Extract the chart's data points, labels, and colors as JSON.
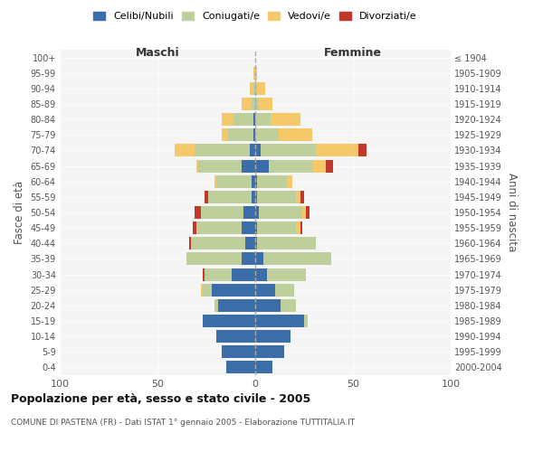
{
  "age_groups": [
    "0-4",
    "5-9",
    "10-14",
    "15-19",
    "20-24",
    "25-29",
    "30-34",
    "35-39",
    "40-44",
    "45-49",
    "50-54",
    "55-59",
    "60-64",
    "65-69",
    "70-74",
    "75-79",
    "80-84",
    "85-89",
    "90-94",
    "95-99",
    "100+"
  ],
  "birth_years": [
    "2000-2004",
    "1995-1999",
    "1990-1994",
    "1985-1989",
    "1980-1984",
    "1975-1979",
    "1970-1974",
    "1965-1969",
    "1960-1964",
    "1955-1959",
    "1950-1954",
    "1945-1949",
    "1940-1944",
    "1935-1939",
    "1930-1934",
    "1925-1929",
    "1920-1924",
    "1915-1919",
    "1910-1914",
    "1905-1909",
    "≤ 1904"
  ],
  "maschi": {
    "celibi": [
      15,
      17,
      20,
      27,
      19,
      22,
      12,
      7,
      5,
      7,
      6,
      2,
      2,
      7,
      3,
      1,
      1,
      0,
      0,
      0,
      0
    ],
    "coniugati": [
      0,
      0,
      0,
      0,
      2,
      5,
      14,
      28,
      28,
      23,
      22,
      22,
      18,
      22,
      28,
      13,
      10,
      2,
      1,
      0,
      0
    ],
    "vedovi": [
      0,
      0,
      0,
      0,
      0,
      1,
      0,
      0,
      0,
      0,
      0,
      0,
      1,
      1,
      10,
      3,
      6,
      5,
      2,
      1,
      0
    ],
    "divorziati": [
      0,
      0,
      0,
      0,
      0,
      0,
      1,
      0,
      1,
      2,
      3,
      2,
      0,
      0,
      0,
      0,
      0,
      0,
      0,
      0,
      0
    ]
  },
  "femmine": {
    "nubili": [
      9,
      15,
      18,
      25,
      13,
      10,
      6,
      4,
      1,
      1,
      2,
      1,
      1,
      7,
      3,
      0,
      0,
      0,
      0,
      0,
      0
    ],
    "coniugate": [
      0,
      0,
      0,
      2,
      8,
      10,
      20,
      35,
      30,
      20,
      22,
      20,
      15,
      22,
      28,
      12,
      8,
      2,
      1,
      0,
      0
    ],
    "vedove": [
      0,
      0,
      0,
      0,
      0,
      0,
      0,
      0,
      0,
      2,
      2,
      2,
      3,
      7,
      22,
      17,
      15,
      7,
      4,
      1,
      0
    ],
    "divorziate": [
      0,
      0,
      0,
      0,
      0,
      0,
      0,
      0,
      0,
      1,
      2,
      2,
      0,
      4,
      4,
      0,
      0,
      0,
      0,
      0,
      0
    ]
  },
  "colors": {
    "celibi_nubili": "#3B6EA8",
    "coniugati": "#BFCF9B",
    "vedovi": "#F5C86A",
    "divorziati": "#C0392B"
  },
  "xlim": 100,
  "title": "Popolazione per età, sesso e stato civile - 2005",
  "subtitle": "COMUNE DI PASTENA (FR) - Dati ISTAT 1° gennaio 2005 - Elaborazione TUTTITALIA.IT",
  "ylabel_left": "Fasce di età",
  "ylabel_right": "Anni di nascita",
  "xlabel_left": "Maschi",
  "xlabel_right": "Femmine"
}
